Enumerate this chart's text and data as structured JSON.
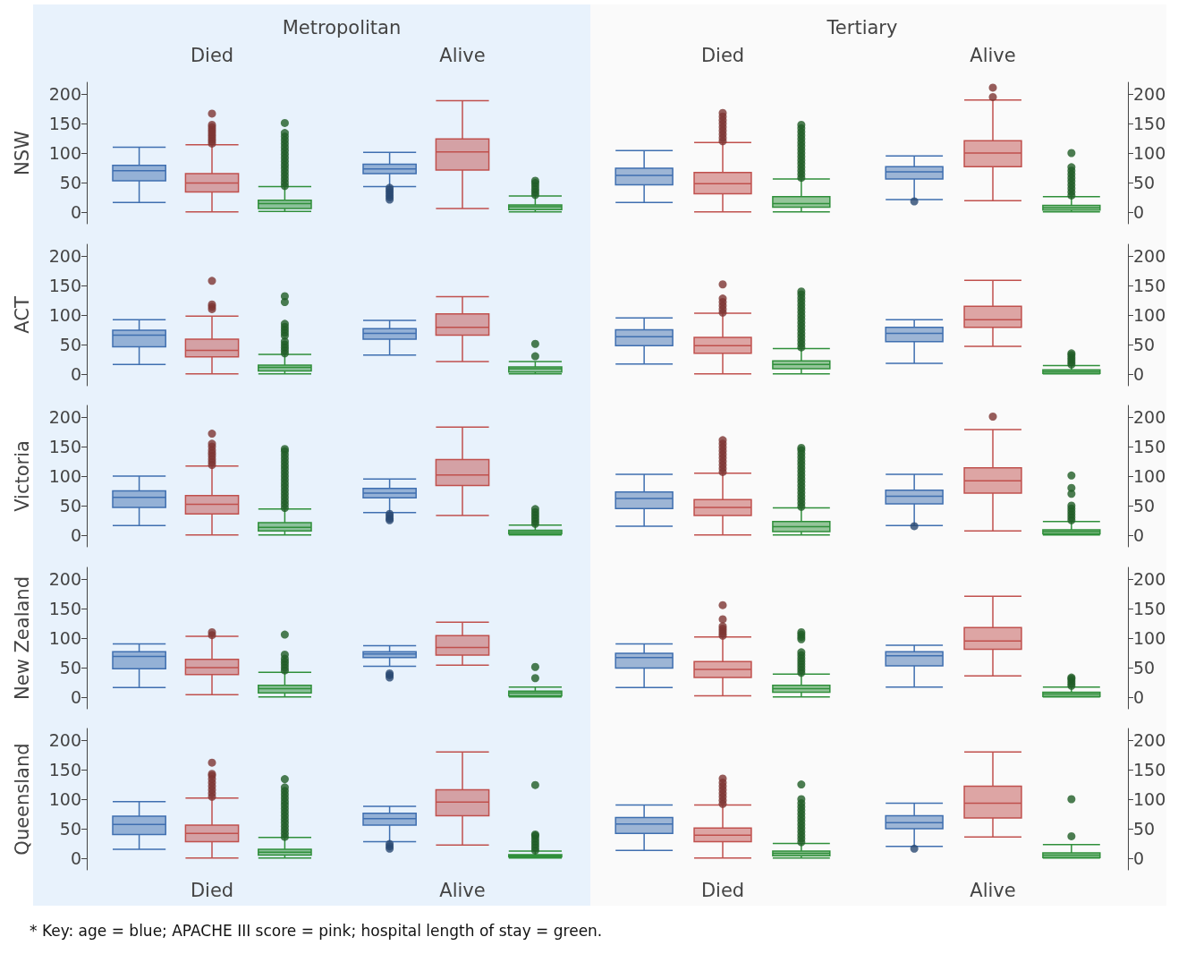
{
  "chart_data": [
    {
      "type": "box",
      "title": "Metropolitan",
      "ylabel": "NSW",
      "categories": [
        "Died",
        "Alive"
      ],
      "ylim": [
        -20,
        220
      ],
      "yticks": [
        0,
        50,
        100,
        150,
        200
      ],
      "series": [
        {
          "color": "#3f6fb0",
          "boxes": [
            {
              "low": 16,
              "q1": 53,
              "median": 70,
              "q3": 79,
              "high": 110
            },
            {
              "low": 43,
              "q1": 65,
              "median": 73,
              "q3": 81,
              "high": 101,
              "outliers": [
                21,
                25,
                29,
                33,
                37,
                41
              ]
            }
          ]
        },
        {
          "color": "#c0504d",
          "boxes": [
            {
              "low": 0,
              "q1": 34,
              "median": 49,
              "q3": 65,
              "high": 114,
              "outliers": [
                116,
                120,
                124,
                128,
                132,
                136,
                140,
                144,
                148,
                167
              ]
            },
            {
              "low": 6,
              "q1": 71,
              "median": 102,
              "q3": 124,
              "high": 189
            }
          ]
        },
        {
          "color": "#2f8f3a",
          "boxes": [
            {
              "low": 1,
              "q1": 6,
              "median": 14,
              "q3": 20,
              "high": 43,
              "outliers": [
                44,
                50,
                56,
                62,
                68,
                74,
                80,
                86,
                92,
                98,
                104,
                110,
                116,
                122,
                128,
                134,
                151
              ]
            },
            {
              "low": 0,
              "q1": 4,
              "median": 9,
              "q3": 12,
              "high": 27,
              "outliers": [
                29,
                34,
                39,
                44,
                49,
                53
              ]
            }
          ]
        }
      ]
    },
    {
      "type": "box",
      "title": "Tertiary",
      "categories": [
        "Died",
        "Alive"
      ],
      "ylim": [
        -20,
        220
      ],
      "yticks": [
        0,
        50,
        100,
        150,
        200
      ],
      "series": [
        {
          "color": "#3f6fb0",
          "boxes": [
            {
              "low": 16,
              "q1": 46,
              "median": 62,
              "q3": 74,
              "high": 104
            },
            {
              "low": 21,
              "q1": 56,
              "median": 68,
              "q3": 77,
              "high": 95,
              "outliers": [
                18
              ]
            }
          ]
        },
        {
          "color": "#c0504d",
          "boxes": [
            {
              "low": 0,
              "q1": 31,
              "median": 48,
              "q3": 67,
              "high": 118,
              "outliers": [
                120,
                126,
                132,
                138,
                144,
                150,
                156,
                162,
                168
              ]
            },
            {
              "low": 19,
              "q1": 77,
              "median": 100,
              "q3": 121,
              "high": 190,
              "outliers": [
                195,
                211
              ]
            }
          ]
        },
        {
          "color": "#2f8f3a",
          "boxes": [
            {
              "low": 0,
              "q1": 8,
              "median": 14,
              "q3": 26,
              "high": 56,
              "outliers": [
                58,
                64,
                70,
                76,
                82,
                88,
                94,
                100,
                106,
                112,
                118,
                124,
                130,
                136,
                142,
                148
              ]
            },
            {
              "low": 0,
              "q1": 3,
              "median": 7,
              "q3": 11,
              "high": 26,
              "outliers": [
                28,
                34,
                40,
                46,
                52,
                58,
                64,
                70,
                76,
                100
              ]
            }
          ]
        }
      ]
    },
    {
      "type": "box",
      "ylabel": "ACT",
      "categories": [
        null,
        null
      ],
      "ylim": [
        -20,
        220
      ],
      "yticks": [
        0,
        50,
        100,
        150,
        200
      ],
      "tick_labels": "y",
      "series": [
        {
          "color": "#3f6fb0",
          "boxes": [
            {
              "low": 16,
              "q1": 46,
              "median": 66,
              "q3": 74,
              "high": 92
            },
            {
              "low": 32,
              "q1": 59,
              "median": 69,
              "q3": 77,
              "high": 91
            }
          ]
        },
        {
          "color": "#c0504d",
          "boxes": [
            {
              "low": 0,
              "q1": 29,
              "median": 40,
              "q3": 59,
              "high": 98,
              "outliers": [
                110,
                114,
                118,
                158
              ]
            },
            {
              "low": 21,
              "q1": 66,
              "median": 79,
              "q3": 102,
              "high": 131
            }
          ]
        },
        {
          "color": "#2f8f3a",
          "boxes": [
            {
              "low": 0,
              "q1": 5,
              "median": 11,
              "q3": 15,
              "high": 33,
              "outliers": [
                35,
                40,
                45,
                50,
                55,
                65,
                70,
                75,
                80,
                85,
                122,
                132
              ]
            },
            {
              "low": 0,
              "q1": 3,
              "median": 9,
              "q3": 12,
              "high": 21,
              "outliers": [
                30,
                51
              ]
            }
          ]
        }
      ]
    },
    {
      "type": "box",
      "categories": [
        null,
        null
      ],
      "ylim": [
        -20,
        220
      ],
      "yticks": [
        0,
        50,
        100,
        150,
        200
      ],
      "tick_labels": "y",
      "series": [
        {
          "color": "#3f6fb0",
          "boxes": [
            {
              "low": 17,
              "q1": 48,
              "median": 63,
              "q3": 75,
              "high": 95
            },
            {
              "low": 18,
              "q1": 55,
              "median": 69,
              "q3": 79,
              "high": 92
            }
          ]
        },
        {
          "color": "#c0504d",
          "boxes": [
            {
              "low": 0,
              "q1": 35,
              "median": 48,
              "q3": 62,
              "high": 103,
              "outliers": [
                104,
                110,
                116,
                122,
                128,
                152
              ]
            },
            {
              "low": 47,
              "q1": 79,
              "median": 92,
              "q3": 115,
              "high": 159
            }
          ]
        },
        {
          "color": "#2f8f3a",
          "boxes": [
            {
              "low": 0,
              "q1": 9,
              "median": 16,
              "q3": 22,
              "high": 43,
              "outliers": [
                45,
                51,
                57,
                63,
                69,
                75,
                81,
                87,
                93,
                99,
                105,
                111,
                117,
                123,
                129,
                135,
                140
              ]
            },
            {
              "low": 0,
              "q1": 1,
              "median": 4,
              "q3": 7,
              "high": 14,
              "outliers": [
                16,
                20,
                24,
                28,
                32,
                35
              ]
            }
          ]
        }
      ]
    },
    {
      "type": "box",
      "ylabel": "Victoria",
      "categories": [
        null,
        null
      ],
      "ylim": [
        -20,
        220
      ],
      "yticks": [
        0,
        50,
        100,
        150,
        200
      ],
      "tick_labels": "y",
      "series": [
        {
          "color": "#3f6fb0",
          "boxes": [
            {
              "low": 16,
              "q1": 47,
              "median": 64,
              "q3": 75,
              "high": 100
            },
            {
              "low": 38,
              "q1": 63,
              "median": 71,
              "q3": 79,
              "high": 95,
              "outliers": [
                25,
                28,
                32,
                36
              ]
            }
          ]
        },
        {
          "color": "#c0504d",
          "boxes": [
            {
              "low": 0,
              "q1": 36,
              "median": 52,
              "q3": 67,
              "high": 117,
              "outliers": [
                119,
                124,
                129,
                134,
                139,
                144,
                150,
                155,
                172
              ]
            },
            {
              "low": 33,
              "q1": 84,
              "median": 102,
              "q3": 128,
              "high": 183
            }
          ]
        },
        {
          "color": "#2f8f3a",
          "boxes": [
            {
              "low": 0,
              "q1": 7,
              "median": 13,
              "q3": 21,
              "high": 44,
              "outliers": [
                46,
                52,
                58,
                64,
                70,
                76,
                82,
                88,
                94,
                100,
                106,
                112,
                118,
                124,
                130,
                136,
                142,
                146
              ]
            },
            {
              "low": 0,
              "q1": 2,
              "median": 5,
              "q3": 8,
              "high": 17,
              "outliers": [
                19,
                24,
                29,
                34,
                39,
                44
              ]
            }
          ]
        }
      ]
    },
    {
      "type": "box",
      "categories": [
        null,
        null
      ],
      "ylim": [
        -20,
        220
      ],
      "yticks": [
        0,
        50,
        100,
        150,
        200
      ],
      "tick_labels": "y",
      "series": [
        {
          "color": "#3f6fb0",
          "boxes": [
            {
              "low": 15,
              "q1": 45,
              "median": 62,
              "q3": 73,
              "high": 103
            },
            {
              "low": 16,
              "q1": 53,
              "median": 66,
              "q3": 76,
              "high": 103,
              "outliers": [
                15
              ]
            }
          ]
        },
        {
          "color": "#c0504d",
          "boxes": [
            {
              "low": 0,
              "q1": 33,
              "median": 47,
              "q3": 60,
              "high": 105,
              "outliers": [
                107,
                113,
                119,
                125,
                131,
                137,
                143,
                149,
                155,
                161
              ]
            },
            {
              "low": 7,
              "q1": 71,
              "median": 92,
              "q3": 114,
              "high": 179,
              "outliers": [
                201
              ]
            }
          ]
        },
        {
          "color": "#2f8f3a",
          "boxes": [
            {
              "low": 0,
              "q1": 6,
              "median": 14,
              "q3": 23,
              "high": 46,
              "outliers": [
                48,
                54,
                60,
                66,
                72,
                78,
                84,
                90,
                96,
                102,
                108,
                114,
                120,
                126,
                132,
                138,
                144,
                148
              ]
            },
            {
              "low": 0,
              "q1": 2,
              "median": 6,
              "q3": 9,
              "high": 23,
              "outliers": [
                25,
                30,
                35,
                40,
                45,
                50,
                70,
                80,
                101
              ]
            }
          ]
        }
      ]
    },
    {
      "type": "box",
      "ylabel": "New Zealand",
      "categories": [
        null,
        null
      ],
      "ylim": [
        -20,
        220
      ],
      "yticks": [
        0,
        50,
        100,
        150,
        200
      ],
      "tick_labels": "y",
      "series": [
        {
          "color": "#3f6fb0",
          "boxes": [
            {
              "low": 16,
              "q1": 48,
              "median": 69,
              "q3": 77,
              "high": 90
            },
            {
              "low": 52,
              "q1": 67,
              "median": 73,
              "q3": 77,
              "high": 87,
              "outliers": [
                33,
                37,
                40
              ]
            }
          ]
        },
        {
          "color": "#c0504d",
          "boxes": [
            {
              "low": 4,
              "q1": 38,
              "median": 50,
              "q3": 64,
              "high": 103,
              "outliers": [
                105,
                110
              ]
            },
            {
              "low": 54,
              "q1": 71,
              "median": 84,
              "q3": 104,
              "high": 127
            }
          ]
        },
        {
          "color": "#2f8f3a",
          "boxes": [
            {
              "low": 0,
              "q1": 7,
              "median": 14,
              "q3": 20,
              "high": 42,
              "outliers": [
                45,
                50,
                55,
                60,
                65,
                72,
                106
              ]
            },
            {
              "low": 0,
              "q1": 2,
              "median": 7,
              "q3": 10,
              "high": 17,
              "outliers": [
                32,
                51
              ]
            }
          ]
        }
      ]
    },
    {
      "type": "box",
      "categories": [
        null,
        null
      ],
      "ylim": [
        -20,
        220
      ],
      "yticks": [
        0,
        50,
        100,
        150,
        200
      ],
      "tick_labels": "y",
      "series": [
        {
          "color": "#3f6fb0",
          "boxes": [
            {
              "low": 16,
              "q1": 49,
              "median": 67,
              "q3": 74,
              "high": 90
            },
            {
              "low": 17,
              "q1": 53,
              "median": 70,
              "q3": 77,
              "high": 88
            }
          ]
        },
        {
          "color": "#c0504d",
          "boxes": [
            {
              "low": 2,
              "q1": 33,
              "median": 47,
              "q3": 60,
              "high": 102,
              "outliers": [
                104,
                108,
                112,
                116,
                120,
                132,
                156
              ]
            },
            {
              "low": 36,
              "q1": 81,
              "median": 95,
              "q3": 118,
              "high": 171
            }
          ]
        },
        {
          "color": "#2f8f3a",
          "boxes": [
            {
              "low": 0,
              "q1": 8,
              "median": 14,
              "q3": 20,
              "high": 39,
              "outliers": [
                41,
                46,
                51,
                56,
                61,
                66,
                71,
                76,
                98,
                102,
                106,
                110
              ]
            },
            {
              "low": 0,
              "q1": 1,
              "median": 5,
              "q3": 8,
              "high": 17,
              "outliers": [
                19,
                23,
                27,
                31,
                33
              ]
            }
          ]
        }
      ]
    },
    {
      "type": "box",
      "ylabel": "Queensland",
      "categories": [
        "Died",
        "Alive"
      ],
      "ylim": [
        -20,
        220
      ],
      "yticks": [
        0,
        50,
        100,
        150,
        200
      ],
      "annotations": [
        "* Key: age = blue; APACHE III score = pink; hospital length of stay = green."
      ],
      "series": [
        {
          "color": "#3f6fb0",
          "boxes": [
            {
              "low": 15,
              "q1": 40,
              "median": 57,
              "q3": 71,
              "high": 96
            },
            {
              "low": 28,
              "q1": 56,
              "median": 67,
              "q3": 76,
              "high": 88,
              "outliers": [
                16,
                20,
                24
              ]
            }
          ]
        },
        {
          "color": "#c0504d",
          "boxes": [
            {
              "low": 0,
              "q1": 28,
              "median": 42,
              "q3": 56,
              "high": 102,
              "outliers": [
                104,
                110,
                116,
                122,
                128,
                134,
                140,
                143,
                162
              ]
            },
            {
              "low": 22,
              "q1": 72,
              "median": 95,
              "q3": 116,
              "high": 180
            }
          ]
        },
        {
          "color": "#2f8f3a",
          "boxes": [
            {
              "low": 0,
              "q1": 5,
              "median": 10,
              "q3": 15,
              "high": 35,
              "outliers": [
                36,
                42,
                48,
                54,
                60,
                66,
                72,
                78,
                84,
                90,
                96,
                102,
                108,
                114,
                120,
                134
              ]
            },
            {
              "low": 0,
              "q1": 2,
              "median": 4,
              "q3": 6,
              "high": 12,
              "outliers": [
                13,
                18,
                23,
                28,
                33,
                38,
                40,
                124
              ]
            }
          ]
        }
      ]
    },
    {
      "type": "box",
      "categories": [
        "Died",
        "Alive"
      ],
      "ylim": [
        -20,
        220
      ],
      "yticks": [
        0,
        50,
        100,
        150,
        200
      ],
      "series": [
        {
          "color": "#3f6fb0",
          "boxes": [
            {
              "low": 13,
              "q1": 42,
              "median": 58,
              "q3": 69,
              "high": 90
            },
            {
              "low": 20,
              "q1": 50,
              "median": 60,
              "q3": 72,
              "high": 93,
              "outliers": [
                16
              ]
            }
          ]
        },
        {
          "color": "#c0504d",
          "boxes": [
            {
              "low": 0,
              "q1": 28,
              "median": 39,
              "q3": 51,
              "high": 90,
              "outliers": [
                92,
                98,
                104,
                110,
                116,
                122,
                128,
                135
              ]
            },
            {
              "low": 36,
              "q1": 68,
              "median": 93,
              "q3": 122,
              "high": 180
            }
          ]
        },
        {
          "color": "#2f8f3a",
          "boxes": [
            {
              "low": 0,
              "q1": 4,
              "median": 8,
              "q3": 12,
              "high": 25,
              "outliers": [
                27,
                33,
                39,
                45,
                51,
                57,
                63,
                69,
                75,
                81,
                87,
                93,
                100,
                125
              ]
            },
            {
              "low": 0,
              "q1": 1,
              "median": 5,
              "q3": 9,
              "high": 23,
              "outliers": [
                37,
                100
              ]
            }
          ]
        }
      ]
    }
  ]
}
